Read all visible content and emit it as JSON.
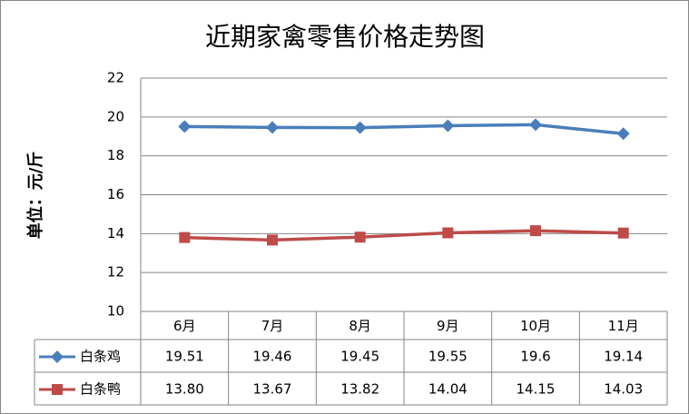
{
  "chart_data": {
    "type": "line",
    "title": "近期家禽零售价格走势图",
    "y_label": "单位：元/斤",
    "categories": [
      "6月",
      "7月",
      "8月",
      "9月",
      "10月",
      "11月"
    ],
    "series": [
      {
        "name": "白条鸡",
        "color": "#4a7ebb",
        "marker": "diamond",
        "values": [
          19.51,
          19.46,
          19.45,
          19.55,
          19.6,
          19.14
        ]
      },
      {
        "name": "白条鸭",
        "color": "#be4b48",
        "marker": "square",
        "values": [
          13.8,
          13.67,
          13.82,
          14.04,
          14.15,
          14.03
        ],
        "value_labels": [
          "13.80",
          "13.67",
          "13.82",
          "14.04",
          "14.15",
          "14.03"
        ]
      }
    ],
    "ylim": [
      10,
      22
    ],
    "yticks": [
      10,
      12,
      14,
      16,
      18,
      20,
      22
    ],
    "grid": true,
    "data_table": true
  }
}
